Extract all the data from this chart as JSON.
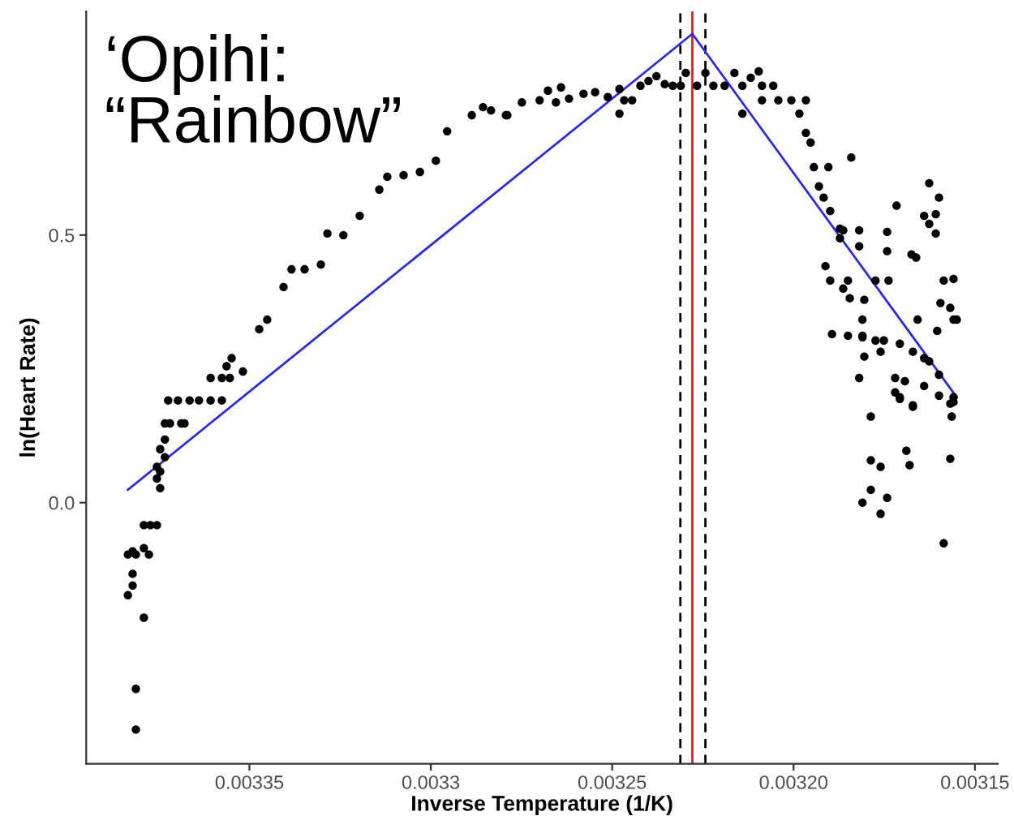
{
  "chart_data": {
    "type": "scatter",
    "title": "‘Opihi:\n“Rainbow”",
    "xlabel": "Inverse Temperature (1/K)",
    "ylabel": "ln(Heart Rate)",
    "xlim": [
      0.003395,
      0.0031437
    ],
    "ylim": [
      -0.488,
      0.918
    ],
    "xticks": [
      0.00335,
      0.0033,
      0.00325,
      {
        "value": 0.0032,
        "label": "0.00320"
      },
      0.00315
    ],
    "yticks": [
      {
        "value": 0,
        "label": "0.0"
      },
      0.5
    ],
    "grid": false,
    "legend": false,
    "ref_lines": [
      {
        "axis": "x",
        "value": 0.0032279,
        "label": null,
        "color": "#e02020",
        "line_style": "solid"
      },
      {
        "axis": "x",
        "value": 0.0032312,
        "label": null,
        "color": "#000000",
        "line_style": "dashed"
      },
      {
        "axis": "x",
        "value": 0.0032243,
        "label": null,
        "color": "#000000",
        "line_style": "dashed"
      }
    ],
    "series": [
      {
        "color": "#000000",
        "marker": "circle",
        "x": [
          0.0033835,
          0.0033835,
          0.0033822,
          0.0033813,
          0.0033822,
          0.0033822,
          0.0033813,
          0.0033813,
          0.0033791,
          0.0033791,
          0.0033777,
          0.0033791,
          0.0033773,
          0.0033755,
          0.0033755,
          0.0033746,
          0.0033746,
          0.0033755,
          0.0033733,
          0.0033746,
          0.0033733,
          0.0033733,
          0.0033719,
          0.0033688,
          0.0033679,
          0.0033724,
          0.0033697,
          0.0033665,
          0.0033639,
          0.0033607,
          0.0033576,
          0.0033607,
          0.0033576,
          0.0033554,
          0.0033563,
          0.0033549,
          0.0033518,
          0.0033473,
          0.0033451,
          0.0033406,
          0.0033384,
          0.0033348,
          0.0033303,
          0.0033285,
          0.0033241,
          0.0033196,
          0.0033142,
          0.003312,
          0.0033075,
          0.003303,
          0.0032986,
          0.0032955,
          0.0032887,
          0.0032856,
          0.0032834,
          0.0032793,
          0.0032789,
          0.0032749,
          0.00327,
          0.0032677,
          0.0032655,
          0.0032641,
          0.0032619,
          0.0032579,
          0.0032547,
          0.0032512,
          0.003248,
          0.003248,
          0.0032467,
          0.0032445,
          0.0032422,
          0.00324,
          0.0032378,
          0.0032355,
          0.0032333,
          0.0032297,
          0.0032311,
          0.0032266,
          0.0032243,
          0.0032221,
          0.003219,
          0.0032163,
          0.0032141,
          0.0032118,
          0.0032096,
          0.0032087,
          0.0032056,
          0.0032141,
          0.0032087,
          0.0032042,
          0.0032006,
          0.0031966,
          0.0031984,
          0.0031966,
          0.0031953,
          0.0031944,
          0.0031904,
          0.003193,
          0.0031917,
          0.0031899,
          0.0031872,
          0.0031863,
          0.0031872,
          0.0031819,
          0.0031819,
          0.0031841,
          0.0031912,
          0.0031899,
          0.0031863,
          0.003185,
          0.0031845,
          0.0031805,
          0.0031894,
          0.003185,
          0.003181,
          0.0031774,
          0.0031738,
          0.003181,
          0.003181,
          0.0031774,
          0.0031751,
          0.0031716,
          0.0031742,
          0.0031742,
          0.0031675,
          0.0031662,
          0.0031626,
          0.0031599,
          0.0031608,
          0.0031626,
          0.0031608,
          0.003164,
          0.0031559,
          0.0031586,
          0.0031568,
          0.0031595,
          0.0031559,
          0.0031604,
          0.003155,
          0.0031658,
          0.0031707,
          0.003164,
          0.0031671,
          0.0031626,
          0.0031805,
          0.003176,
          0.003172,
          0.0031693,
          0.003164,
          0.0031599,
          0.0031819,
          0.0031707,
          0.0031671,
          0.0031599,
          0.0031559,
          0.0031787,
          0.0031564,
          0.003172,
          0.0031707,
          0.0031671,
          0.0031559,
          0.0031568,
          0.0031787,
          0.003176,
          0.0031689,
          0.003168,
          0.0031568,
          0.0031787,
          0.003181,
          0.0031742,
          0.003176,
          0.0031586
        ],
        "values": [
          -0.173,
          -0.097,
          -0.091,
          -0.097,
          -0.133,
          -0.155,
          -0.348,
          -0.424,
          -0.215,
          -0.085,
          -0.097,
          -0.042,
          -0.042,
          -0.042,
          0.045,
          0.027,
          0.058,
          0.067,
          0.085,
          0.1,
          0.118,
          0.148,
          0.148,
          0.148,
          0.148,
          0.191,
          0.191,
          0.191,
          0.191,
          0.191,
          0.191,
          0.233,
          0.233,
          0.233,
          0.255,
          0.27,
          0.245,
          0.324,
          0.342,
          0.403,
          0.436,
          0.436,
          0.445,
          0.503,
          0.5,
          0.536,
          0.585,
          0.609,
          0.612,
          0.618,
          0.639,
          0.694,
          0.724,
          0.739,
          0.733,
          0.724,
          0.724,
          0.748,
          0.752,
          0.77,
          0.748,
          0.776,
          0.755,
          0.764,
          0.767,
          0.758,
          0.773,
          0.727,
          0.752,
          0.752,
          0.779,
          0.788,
          0.797,
          0.782,
          0.779,
          0.803,
          0.779,
          0.779,
          0.803,
          0.779,
          0.779,
          0.803,
          0.779,
          0.794,
          0.806,
          0.779,
          0.779,
          0.727,
          0.752,
          0.752,
          0.752,
          0.752,
          0.727,
          0.691,
          0.673,
          0.627,
          0.627,
          0.591,
          0.57,
          0.545,
          0.512,
          0.509,
          0.494,
          0.509,
          0.479,
          0.645,
          0.442,
          0.415,
          0.4,
          0.415,
          0.382,
          0.379,
          0.315,
          0.312,
          0.312,
          0.415,
          0.415,
          0.342,
          0.309,
          0.303,
          0.303,
          0.555,
          0.506,
          0.47,
          0.464,
          0.458,
          0.597,
          0.57,
          0.539,
          0.521,
          0.503,
          0.536,
          0.418,
          0.415,
          0.364,
          0.373,
          0.342,
          0.321,
          0.342,
          0.342,
          0.297,
          0.27,
          0.282,
          0.264,
          0.273,
          0.282,
          0.233,
          0.227,
          0.218,
          0.239,
          0.233,
          0.197,
          0.182,
          0.2,
          0.188,
          0.161,
          0.161,
          0.206,
          0.194,
          0.179,
          0.197,
          0.185,
          0.079,
          0.067,
          0.097,
          0.07,
          0.082,
          0.024,
          0.0,
          0.009,
          -0.021,
          -0.076
        ]
      },
      {
        "type": "line",
        "marker": "none",
        "color": "#2a2ae6",
        "x": [
          0.0033835,
          0.0032279,
          0.003155
        ],
        "values": [
          0.024,
          0.876,
          0.197
        ]
      }
    ]
  }
}
